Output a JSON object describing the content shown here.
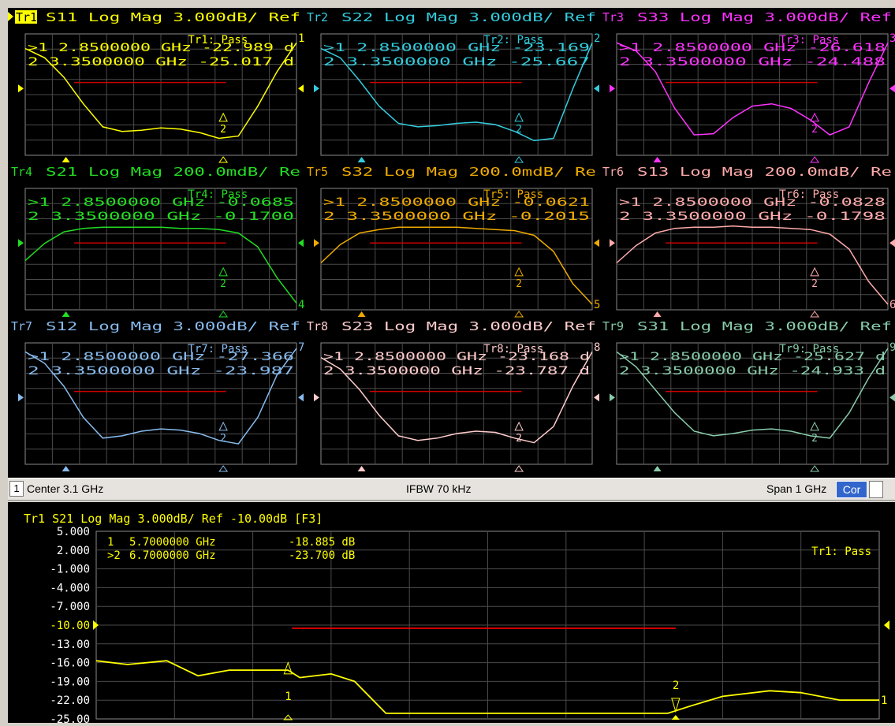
{
  "grid_traces": [
    {
      "id": "Tr1",
      "color": "#ffff00",
      "active": true,
      "header_name": "S11",
      "header_format": "Log Mag 3.000dB/ Ref",
      "status": "Tr1: Pass",
      "marker1": {
        "freq": "2.8500000 GHz",
        "value": "-22.989 d"
      },
      "marker2": {
        "freq": "3.3500000 GHz",
        "value": "-25.017 d"
      },
      "right_label": "1",
      "x_marker_frac": 0.15,
      "x_marker2_frac": 0.73
    },
    {
      "id": "Tr2",
      "color": "#33ccdd",
      "active": false,
      "header_name": "S22",
      "header_format": "Log Mag 3.000dB/ Ref",
      "status": "Tr2: Pass",
      "marker1": {
        "freq": "2.8500000 GHz",
        "value": "-23.169"
      },
      "marker2": {
        "freq": "3.3500000 GHz",
        "value": "-25.667"
      },
      "right_label": "2",
      "x_marker_frac": 0.15,
      "x_marker2_frac": 0.73
    },
    {
      "id": "Tr3",
      "color": "#ff33ff",
      "active": false,
      "header_name": "S33",
      "header_format": "Log Mag 3.000dB/ Ref",
      "status": "Tr3: Pass",
      "marker1": {
        "freq": "2.8500000 GHz",
        "value": "-26.618"
      },
      "marker2": {
        "freq": "3.3500000 GHz",
        "value": "-24.488"
      },
      "right_label": "3",
      "x_marker_frac": 0.15,
      "x_marker2_frac": 0.73
    },
    {
      "id": "Tr4",
      "color": "#22dd22",
      "active": false,
      "header_name": "S21",
      "header_format": "Log Mag 200.0mdB/ Re",
      "status": "Tr4: Pass",
      "marker1": {
        "freq": "2.8500000 GHz",
        "value": "-0.0685"
      },
      "marker2": {
        "freq": "3.3500000 GHz",
        "value": "-0.1700"
      },
      "right_label": "4",
      "x_marker_frac": 0.15,
      "x_marker2_frac": 0.73
    },
    {
      "id": "Tr5",
      "color": "#eeaa00",
      "active": false,
      "header_name": "S32",
      "header_format": "Log Mag 200.0mdB/ Re",
      "status": "Tr5: Pass",
      "marker1": {
        "freq": "2.8500000 GHz",
        "value": "-0.0621"
      },
      "marker2": {
        "freq": "3.3500000 GHz",
        "value": "-0.2015"
      },
      "right_label": "5",
      "x_marker_frac": 0.15,
      "x_marker2_frac": 0.73
    },
    {
      "id": "Tr6",
      "color": "#ffaaaa",
      "active": false,
      "header_name": "S13",
      "header_format": "Log Mag 200.0mdB/ Re",
      "status": "Tr6: Pass",
      "marker1": {
        "freq": "2.8500000 GHz",
        "value": "-0.0828"
      },
      "marker2": {
        "freq": "3.3500000 GHz",
        "value": "-0.1798"
      },
      "right_label": "6",
      "x_marker_frac": 0.15,
      "x_marker2_frac": 0.73
    },
    {
      "id": "Tr7",
      "color": "#88bbee",
      "active": false,
      "header_name": "S12",
      "header_format": "Log Mag 3.000dB/ Ref",
      "status": "Tr7: Pass",
      "marker1": {
        "freq": "2.8500000 GHz",
        "value": "-27.366"
      },
      "marker2": {
        "freq": "3.3500000 GHz",
        "value": "-23.987"
      },
      "right_label": "7",
      "x_marker_frac": 0.15,
      "x_marker2_frac": 0.73
    },
    {
      "id": "Tr8",
      "color": "#ffcccc",
      "active": false,
      "header_name": "S23",
      "header_format": "Log Mag 3.000dB/ Ref",
      "status": "Tr8: Pass",
      "marker1": {
        "freq": "2.8500000 GHz",
        "value": "-23.168 d"
      },
      "marker2": {
        "freq": "3.3500000 GHz",
        "value": "-23.787 d"
      },
      "right_label": "8",
      "x_marker_frac": 0.15,
      "x_marker2_frac": 0.73
    },
    {
      "id": "Tr9",
      "color": "#88ccaa",
      "active": false,
      "header_name": "S31",
      "header_format": "Log Mag 3.000dB/ Ref",
      "status": "Tr9: Pass",
      "marker1": {
        "freq": "2.8500000 GHz",
        "value": "-25.627 d"
      },
      "marker2": {
        "freq": "3.3500000 GHz",
        "value": "-24.933 d"
      },
      "right_label": "9",
      "x_marker_frac": 0.15,
      "x_marker2_frac": 0.73
    }
  ],
  "status_bar": {
    "channel": "1",
    "center": "Center 3.1 GHz",
    "ifbw": "IFBW 70 kHz",
    "span": "Span 1 GHz",
    "cor": "Cor"
  },
  "bottom_trace": {
    "header": "Tr1  S21  Log Mag 3.000dB/ Ref -10.00dB [F3]",
    "color": "#ffff00",
    "status": "Tr1: Pass",
    "y_ticks": [
      "5.000",
      "2.000",
      "-1.000",
      "-4.000",
      "-7.000",
      "-10.00",
      "-13.00",
      "-16.00",
      "-19.00",
      "-22.00",
      "-25.00"
    ],
    "ref_tick": "-10.00",
    "marker_list": [
      {
        "num": "1",
        "freq": "5.7000000 GHz",
        "value": "-18.885 dB",
        "active": false
      },
      {
        "num": ">2",
        "freq": "6.7000000 GHz",
        "value": "-23.700 dB",
        "active": true
      }
    ],
    "marker_labels": [
      "1",
      "2"
    ],
    "right_label": "1"
  }
}
